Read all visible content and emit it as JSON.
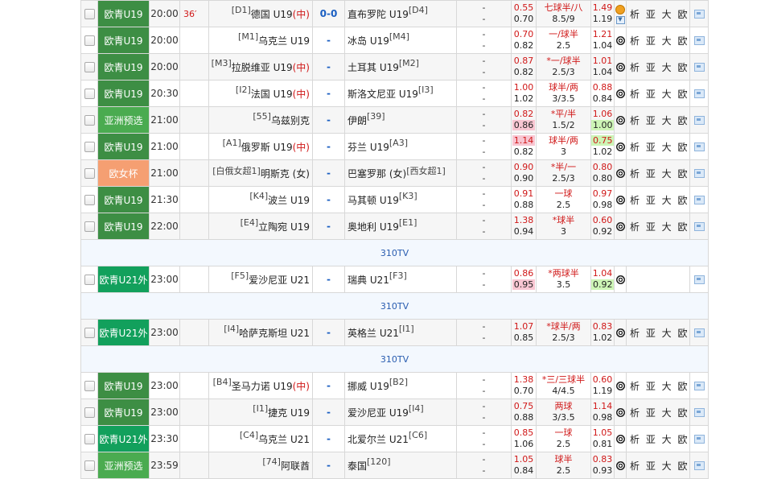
{
  "colors": {
    "euro_u19": "#3d8e44",
    "asia_qual": "#4aab50",
    "euro_women": "#f59f72",
    "euro_u21": "#12a05c"
  },
  "separator_label": "310TV",
  "links_label": "析 亚 大 欧",
  "rows": [
    {
      "type": "match",
      "league": "欧青U19",
      "league_color": "#3d8e44",
      "time": "20:00",
      "minute": "36′",
      "home_rank": "[D1]",
      "home": "德国 U19",
      "home_neutral": "(中)",
      "score": "0-0",
      "away": "直布罗陀 U19",
      "away_rank": "[D4]",
      "d1": "-",
      "d2": "-",
      "o1": "0.55",
      "o2": "0.70",
      "h1": "七球半/八",
      "h1_star": "",
      "h2": "8.5/9",
      "u1": "1.49",
      "u2": "1.19",
      "icon": "o",
      "user": false
    },
    {
      "type": "match",
      "league": "欧青U19",
      "league_color": "#3d8e44",
      "time": "20:00",
      "minute": "",
      "home_rank": "[M1]",
      "home": "乌克兰 U19",
      "home_neutral": "",
      "score": "-",
      "away": "冰岛 U19",
      "away_rank": "[M4]",
      "d1": "-",
      "d2": "-",
      "o1": "0.70",
      "o2": "0.82",
      "h1": "一/球半",
      "h1_star": "",
      "h2": "2.5",
      "u1": "1.21",
      "u2": "1.04",
      "icon": "ball",
      "user": false
    },
    {
      "type": "match",
      "league": "欧青U19",
      "league_color": "#3d8e44",
      "time": "20:00",
      "minute": "",
      "home_rank": "[M3]",
      "home": "拉脱维亚 U19",
      "home_neutral": "(中)",
      "score": "-",
      "away": "土耳其 U19",
      "away_rank": "[M2]",
      "d1": "-",
      "d2": "-",
      "o1": "0.87",
      "o2": "0.82",
      "h1": "一/球半",
      "h1_star": "*",
      "h2": "2.5/3",
      "u1": "1.01",
      "u2": "1.04",
      "icon": "ball",
      "user": false
    },
    {
      "type": "match",
      "league": "欧青U19",
      "league_color": "#3d8e44",
      "time": "20:30",
      "minute": "",
      "home_rank": "[I2]",
      "home": "法国 U19",
      "home_neutral": "(中)",
      "score": "-",
      "away": "斯洛文尼亚 U19",
      "away_rank": "[I3]",
      "d1": "-",
      "d2": "-",
      "o1": "1.00",
      "o2": "1.02",
      "h1": "球半/两",
      "h1_star": "",
      "h2": "3/3.5",
      "u1": "0.88",
      "u2": "0.84",
      "icon": "ball",
      "user": false
    },
    {
      "type": "match",
      "league": "亚洲预选",
      "league_color": "#4aab50",
      "time": "21:00",
      "minute": "",
      "home_rank": "[55]",
      "home": "乌兹别克",
      "home_neutral": "",
      "score": "-",
      "away": "伊朗",
      "away_rank": "[39]",
      "d1": "-",
      "d2": "-",
      "o1": "0.82",
      "o2": "0.86",
      "o2_hl": "pink",
      "h1": "平/半",
      "h1_star": "*",
      "h2": "1.5/2",
      "u1": "1.06",
      "u2": "1.00",
      "u2_hl": "green",
      "icon": "ball",
      "user": true
    },
    {
      "type": "match",
      "league": "欧青U19",
      "league_color": "#3d8e44",
      "time": "21:00",
      "minute": "",
      "home_rank": "[A1]",
      "home": "俄罗斯 U19",
      "home_neutral": "(中)",
      "score": "-",
      "away": "芬兰 U19",
      "away_rank": "[A3]",
      "d1": "-",
      "d2": "-",
      "o1": "1.14",
      "o1_hl": "pink",
      "o2": "0.82",
      "h1": "球半/两",
      "h1_star": "",
      "h2": "3",
      "u1": "0.75",
      "u1_hl": "green",
      "u2": "1.02",
      "icon": "ball",
      "user": false
    },
    {
      "type": "match",
      "league": "欧女杯",
      "league_color": "#f59f72",
      "time": "21:00",
      "minute": "",
      "home_rank": "[白俄女超1]",
      "home": "明斯克 (女)",
      "home_neutral": "",
      "score": "-",
      "away": "巴塞罗那 (女)",
      "away_rank": "[西女超1]",
      "d1": "-",
      "d2": "-",
      "o1": "0.90",
      "o2": "0.90",
      "h1": "半/一",
      "h1_star": "*",
      "h2": "2.5/3",
      "u1": "0.80",
      "u2": "0.80",
      "icon": "ball",
      "user": false
    },
    {
      "type": "match",
      "league": "欧青U19",
      "league_color": "#3d8e44",
      "time": "21:30",
      "minute": "",
      "home_rank": "[K4]",
      "home": "波兰 U19",
      "home_neutral": "",
      "score": "-",
      "away": "马其顿 U19",
      "away_rank": "[K3]",
      "d1": "-",
      "d2": "-",
      "o1": "0.91",
      "o2": "0.88",
      "h1": "一球",
      "h1_star": "",
      "h2": "2.5",
      "u1": "0.97",
      "u2": "0.98",
      "icon": "ball",
      "user": false
    },
    {
      "type": "match",
      "league": "欧青U19",
      "league_color": "#3d8e44",
      "time": "22:00",
      "minute": "",
      "home_rank": "[E4]",
      "home": "立陶宛 U19",
      "home_neutral": "",
      "score": "-",
      "away": "奥地利 U19",
      "away_rank": "[E1]",
      "d1": "-",
      "d2": "-",
      "o1": "1.38",
      "o2": "0.94",
      "h1": "球半",
      "h1_star": "*",
      "h2": "3",
      "u1": "0.60",
      "u2": "0.92",
      "icon": "ball",
      "user": false
    },
    {
      "type": "sep"
    },
    {
      "type": "match",
      "league": "欧青U21外",
      "league_color": "#12a05c",
      "time": "23:00",
      "minute": "",
      "home_rank": "[F5]",
      "home": "爱沙尼亚 U21",
      "home_neutral": "",
      "score": "-",
      "away": "瑞典 U21",
      "away_rank": "[F3]",
      "d1": "-",
      "d2": "-",
      "o1": "0.86",
      "o2": "0.95",
      "o2_hl": "pink",
      "h1": "两球半",
      "h1_star": "*",
      "h2": "3.5",
      "u1": "1.04",
      "u2": "0.92",
      "u2_hl": "green",
      "icon": "ball",
      "user": false,
      "no_links": true
    },
    {
      "type": "sep"
    },
    {
      "type": "match",
      "league": "欧青U21外",
      "league_color": "#12a05c",
      "time": "23:00",
      "minute": "",
      "home_rank": "[I4]",
      "home": "哈萨克斯坦 U21",
      "home_neutral": "",
      "score": "-",
      "away": "英格兰 U21",
      "away_rank": "[I1]",
      "d1": "-",
      "d2": "-",
      "o1": "1.07",
      "o2": "0.85",
      "h1": "球半/两",
      "h1_star": "*",
      "h2": "2.5/3",
      "u1": "0.83",
      "u2": "1.02",
      "icon": "ball",
      "user": true
    },
    {
      "type": "sep"
    },
    {
      "type": "match",
      "league": "欧青U19",
      "league_color": "#3d8e44",
      "time": "23:00",
      "minute": "",
      "home_rank": "[B4]",
      "home": "圣马力诺 U19",
      "home_neutral": "(中)",
      "score": "-",
      "away": "挪威 U19",
      "away_rank": "[B2]",
      "d1": "-",
      "d2": "-",
      "o1": "1.38",
      "o2": "0.70",
      "h1": "三/三球半",
      "h1_star": "*",
      "h2": "4/4.5",
      "u1": "0.60",
      "u2": "1.19",
      "icon": "ball",
      "user": false
    },
    {
      "type": "match",
      "league": "欧青U19",
      "league_color": "#3d8e44",
      "time": "23:00",
      "minute": "",
      "home_rank": "[I1]",
      "home": "捷克 U19",
      "home_neutral": "",
      "score": "-",
      "away": "爱沙尼亚 U19",
      "away_rank": "[I4]",
      "d1": "-",
      "d2": "-",
      "o1": "0.75",
      "o2": "0.88",
      "h1": "两球",
      "h1_star": "",
      "h2": "3/3.5",
      "u1": "1.14",
      "u2": "0.98",
      "icon": "ball",
      "user": false
    },
    {
      "type": "match",
      "league": "欧青U21外",
      "league_color": "#12a05c",
      "time": "23:30",
      "minute": "",
      "home_rank": "[C4]",
      "home": "乌克兰 U21",
      "home_neutral": "",
      "score": "-",
      "away": "北爱尔兰 U21",
      "away_rank": "[C6]",
      "d1": "-",
      "d2": "-",
      "o1": "0.85",
      "o2": "1.06",
      "h1": "一球",
      "h1_star": "",
      "h2": "2.5",
      "u1": "1.05",
      "u2": "0.81",
      "icon": "ball",
      "user": true
    },
    {
      "type": "match",
      "league": "亚洲预选",
      "league_color": "#4aab50",
      "time": "23:59",
      "minute": "",
      "home_rank": "[74]",
      "home": "阿联酋",
      "home_neutral": "",
      "score": "-",
      "away": "泰国",
      "away_rank": "[120]",
      "d1": "-",
      "d2": "-",
      "o1": "1.05",
      "o2": "0.84",
      "h1": "球半",
      "h1_star": "",
      "h2": "2.5",
      "u1": "0.83",
      "u2": "0.93",
      "icon": "ball",
      "user": true
    }
  ]
}
